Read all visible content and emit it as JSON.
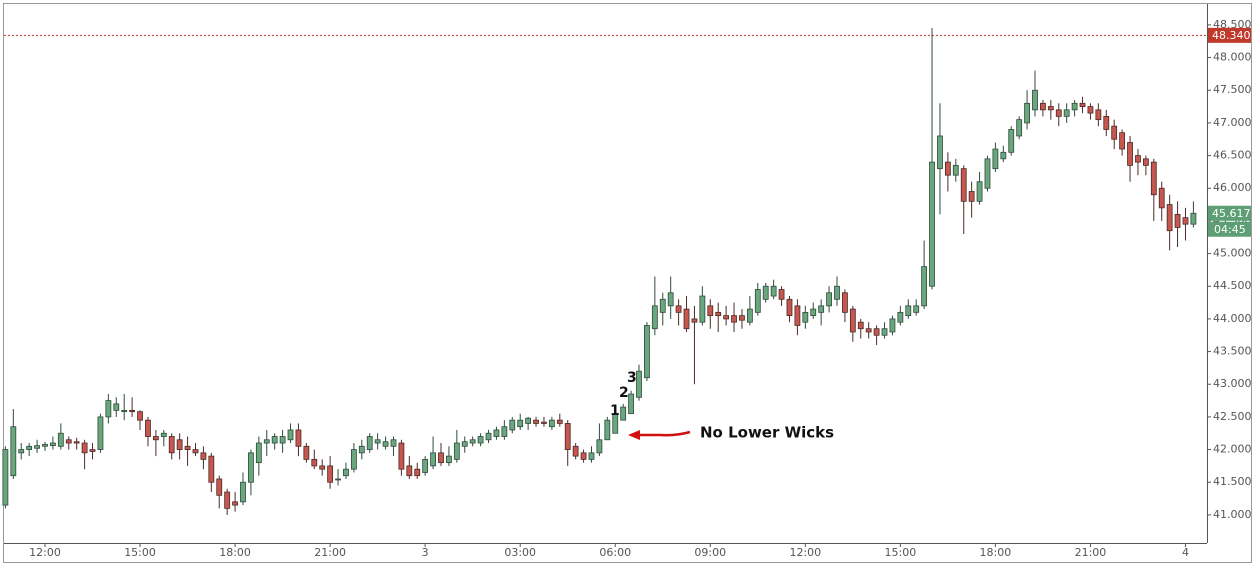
{
  "chart_data": {
    "type": "candlestick",
    "categories": [
      null,
      null,
      null,
      null,
      null,
      "12:00",
      null,
      null,
      null,
      null,
      null,
      null,
      null,
      null,
      null,
      null,
      null,
      "15:00",
      null,
      null,
      null,
      null,
      null,
      null,
      null,
      null,
      null,
      null,
      null,
      "18:00",
      null,
      null,
      null,
      null,
      null,
      null,
      null,
      null,
      null,
      null,
      null,
      "21:00",
      null,
      null,
      null,
      null,
      null,
      null,
      null,
      null,
      null,
      null,
      null,
      "3",
      null,
      null,
      null,
      null,
      null,
      null,
      null,
      null,
      null,
      null,
      null,
      "03:00",
      null,
      null,
      null,
      null,
      null,
      null,
      null,
      null,
      null,
      null,
      null,
      "06:00",
      null,
      null,
      null,
      null,
      null,
      null,
      null,
      null,
      null,
      null,
      null,
      "09:00",
      null,
      null,
      null,
      null,
      null,
      null,
      null,
      null,
      null,
      null,
      null,
      "12:00",
      null,
      null,
      null,
      null,
      null,
      null,
      null,
      null,
      null,
      null,
      null,
      "15:00",
      null,
      null,
      null,
      null,
      null,
      null,
      null,
      null,
      null,
      null,
      null,
      "18:00",
      null,
      null,
      null,
      null,
      null,
      null,
      null,
      null,
      null,
      null,
      null,
      "21:00",
      null,
      null,
      null,
      null,
      null,
      null,
      null,
      null,
      null,
      null,
      null,
      "4",
      null
    ],
    "open": [
      41.15,
      41.6,
      41.95,
      42.0,
      42.02,
      42.05,
      42.06,
      42.05,
      42.15,
      42.12,
      42.1,
      42.0,
      42.0,
      42.5,
      42.6,
      42.58,
      42.6,
      42.58,
      42.45,
      42.2,
      42.2,
      42.2,
      42.15,
      42.05,
      42.0,
      41.95,
      41.9,
      41.55,
      41.35,
      41.2,
      41.2,
      41.5,
      41.8,
      42.1,
      42.1,
      42.1,
      42.15,
      42.3,
      42.05,
      41.85,
      41.75,
      41.75,
      41.55,
      41.6,
      41.7,
      41.95,
      42.0,
      42.1,
      42.05,
      42.05,
      42.1,
      41.75,
      41.7,
      41.65,
      41.75,
      41.95,
      41.8,
      41.85,
      42.05,
      42.1,
      42.1,
      42.15,
      42.2,
      42.2,
      42.3,
      42.35,
      42.4,
      42.45,
      42.42,
      42.35,
      42.45,
      42.4,
      42.05,
      41.95,
      41.85,
      41.95,
      42.15,
      42.25,
      42.45,
      42.55,
      42.8,
      43.1,
      43.85,
      44.1,
      44.2,
      44.2,
      44.15,
      44.0,
      43.95,
      44.2,
      44.1,
      44.05,
      44.05,
      44.05,
      43.95,
      44.1,
      44.3,
      44.35,
      44.45,
      44.3,
      44.2,
      43.95,
      44.05,
      44.1,
      44.2,
      44.3,
      44.4,
      44.15,
      43.95,
      43.85,
      43.85,
      43.75,
      43.8,
      43.95,
      44.05,
      44.1,
      44.2,
      44.5,
      46.3,
      46.4,
      46.2,
      46.3,
      45.95,
      45.8,
      46.0,
      46.3,
      46.45,
      46.55,
      46.8,
      47.0,
      47.2,
      47.3,
      47.25,
      47.2,
      47.1,
      47.2,
      47.3,
      47.25,
      47.2,
      47.1,
      46.95,
      46.85,
      46.7,
      46.5,
      46.45,
      46.4,
      46.0,
      45.75,
      45.6,
      45.55,
      45.45
    ],
    "high": [
      42.05,
      42.62,
      42.1,
      42.1,
      42.15,
      42.12,
      42.2,
      42.4,
      42.2,
      42.18,
      42.15,
      42.1,
      42.55,
      42.85,
      42.8,
      42.85,
      42.8,
      42.6,
      42.5,
      42.3,
      42.3,
      42.25,
      42.25,
      42.2,
      42.1,
      42.05,
      41.95,
      41.6,
      41.4,
      41.35,
      41.65,
      42.0,
      42.2,
      42.3,
      42.25,
      42.3,
      42.4,
      42.4,
      42.1,
      42.0,
      41.85,
      41.9,
      41.7,
      41.8,
      42.1,
      42.15,
      42.25,
      42.25,
      42.2,
      42.2,
      42.15,
      41.9,
      41.8,
      41.9,
      42.2,
      42.1,
      42.05,
      42.3,
      42.2,
      42.2,
      42.25,
      42.3,
      42.35,
      42.45,
      42.5,
      42.55,
      42.5,
      42.5,
      42.5,
      42.5,
      42.55,
      42.45,
      42.1,
      42.0,
      42.05,
      42.4,
      42.5,
      42.6,
      42.7,
      42.9,
      43.3,
      43.95,
      44.65,
      44.4,
      44.65,
      44.3,
      44.35,
      44.2,
      44.5,
      44.3,
      44.25,
      44.2,
      44.25,
      44.15,
      44.35,
      44.55,
      44.55,
      44.6,
      44.5,
      44.35,
      44.3,
      44.2,
      44.25,
      44.3,
      44.5,
      44.65,
      44.45,
      44.2,
      44.0,
      43.95,
      43.9,
      43.95,
      44.05,
      44.2,
      44.3,
      44.3,
      45.2,
      48.45,
      47.3,
      46.55,
      46.45,
      46.35,
      46.1,
      46.25,
      46.5,
      46.7,
      46.65,
      46.95,
      47.1,
      47.5,
      47.8,
      47.35,
      47.35,
      47.3,
      47.3,
      47.35,
      47.4,
      47.3,
      47.3,
      47.2,
      47.05,
      46.9,
      46.8,
      46.6,
      46.5,
      46.45,
      46.1,
      45.9,
      45.8,
      45.7,
      45.8
    ],
    "low": [
      41.1,
      41.55,
      41.85,
      41.9,
      41.95,
      41.98,
      42.0,
      42.0,
      42.0,
      42.0,
      41.7,
      41.85,
      41.95,
      42.4,
      42.5,
      42.45,
      42.5,
      42.3,
      42.05,
      41.9,
      42.05,
      41.85,
      41.85,
      41.75,
      41.9,
      41.7,
      41.35,
      41.1,
      41.0,
      41.05,
      41.15,
      41.3,
      41.6,
      41.9,
      42.0,
      41.95,
      42.1,
      41.9,
      41.8,
      41.7,
      41.6,
      41.4,
      41.45,
      41.55,
      41.65,
      41.85,
      41.95,
      42.0,
      42.0,
      41.9,
      41.6,
      41.55,
      41.55,
      41.6,
      41.7,
      41.75,
      41.75,
      41.8,
      41.95,
      42.05,
      42.05,
      42.1,
      42.15,
      42.15,
      42.25,
      42.3,
      42.3,
      42.35,
      42.35,
      42.3,
      42.35,
      41.75,
      41.85,
      41.8,
      41.8,
      41.9,
      42.15,
      42.25,
      42.45,
      42.55,
      42.75,
      43.05,
      43.75,
      43.9,
      44.0,
      43.9,
      43.8,
      43.0,
      43.9,
      43.85,
      43.8,
      43.9,
      43.8,
      43.85,
      43.9,
      44.05,
      44.25,
      44.3,
      44.2,
      43.95,
      43.75,
      43.85,
      44.0,
      43.9,
      44.1,
      44.2,
      43.95,
      43.65,
      43.7,
      43.7,
      43.6,
      43.7,
      43.75,
      43.9,
      44.0,
      44.05,
      44.15,
      44.45,
      45.6,
      45.95,
      46.1,
      45.3,
      45.55,
      45.75,
      45.95,
      46.25,
      46.4,
      46.5,
      46.75,
      46.9,
      47.1,
      47.1,
      47.05,
      46.95,
      47.0,
      47.1,
      47.15,
      47.05,
      46.95,
      46.8,
      46.6,
      46.5,
      46.1,
      46.2,
      46.2,
      45.5,
      45.5,
      45.05,
      45.1,
      45.2,
      45.4
    ],
    "close": [
      42.0,
      42.35,
      42.0,
      42.05,
      42.06,
      42.08,
      42.1,
      42.25,
      42.1,
      42.1,
      41.95,
      41.97,
      42.5,
      42.75,
      42.7,
      42.6,
      42.58,
      42.45,
      42.2,
      42.15,
      42.25,
      41.95,
      42.0,
      42.0,
      41.95,
      41.85,
      41.5,
      41.3,
      41.1,
      41.15,
      41.5,
      41.95,
      42.1,
      42.15,
      42.2,
      42.2,
      42.3,
      42.05,
      41.85,
      41.75,
      41.7,
      41.5,
      41.55,
      41.7,
      42.0,
      42.05,
      42.2,
      42.15,
      42.12,
      42.15,
      41.7,
      41.6,
      41.6,
      41.85,
      41.95,
      41.8,
      41.9,
      42.1,
      42.12,
      42.15,
      42.2,
      42.25,
      42.3,
      42.35,
      42.45,
      42.45,
      42.48,
      42.4,
      42.4,
      42.45,
      42.4,
      42.0,
      41.9,
      41.85,
      41.95,
      42.15,
      42.45,
      42.55,
      42.65,
      42.85,
      43.2,
      43.9,
      44.2,
      44.3,
      44.4,
      44.1,
      43.85,
      43.95,
      44.35,
      44.05,
      44.05,
      44.0,
      43.95,
      43.98,
      44.15,
      44.45,
      44.5,
      44.5,
      44.3,
      44.05,
      43.9,
      44.1,
      44.15,
      44.2,
      44.4,
      44.5,
      44.1,
      43.8,
      43.85,
      43.8,
      43.75,
      43.85,
      44.0,
      44.1,
      44.2,
      44.2,
      44.8,
      46.4,
      46.8,
      46.2,
      46.35,
      45.8,
      45.8,
      46.1,
      46.45,
      46.6,
      46.55,
      46.9,
      47.05,
      47.3,
      47.5,
      47.2,
      47.2,
      47.1,
      47.2,
      47.3,
      47.25,
      47.15,
      47.05,
      46.9,
      46.75,
      46.6,
      46.35,
      46.4,
      46.35,
      45.9,
      45.7,
      45.35,
      45.4,
      45.45,
      45.617
    ],
    "up_color": "#6aa77f",
    "down_color": "#c5574f",
    "ylim": [
      40.57,
      48.82
    ],
    "yticks": [
      {
        "value": 41,
        "label": "41.000"
      },
      {
        "value": 41.5,
        "label": "41.500"
      },
      {
        "value": 42,
        "label": "42.000"
      },
      {
        "value": 42.5,
        "label": "42.500"
      },
      {
        "value": 43,
        "label": "43.000"
      },
      {
        "value": 43.5,
        "label": "43.500"
      },
      {
        "value": 44,
        "label": "44.000"
      },
      {
        "value": 44.5,
        "label": "44.500"
      },
      {
        "value": 45,
        "label": "45.000"
      },
      {
        "value": 45.5,
        "label": "45.500"
      },
      {
        "value": 46,
        "label": "46.000"
      },
      {
        "value": 46.5,
        "label": "46.500"
      },
      {
        "value": 47,
        "label": "47.000"
      },
      {
        "value": 47.5,
        "label": "47.500"
      },
      {
        "value": 48,
        "label": "48.000"
      },
      {
        "value": 48.5,
        "label": "48.500"
      }
    ],
    "grid": false,
    "price_line": {
      "value": 48.34,
      "label": "48.340",
      "color": "#c0392b"
    },
    "last_price": {
      "value": 45.617,
      "label": "45.617",
      "color": "#5d9e74"
    },
    "countdown": "04:45",
    "annotations": [
      "1",
      "2",
      "3",
      "No Lower Wicks"
    ]
  }
}
